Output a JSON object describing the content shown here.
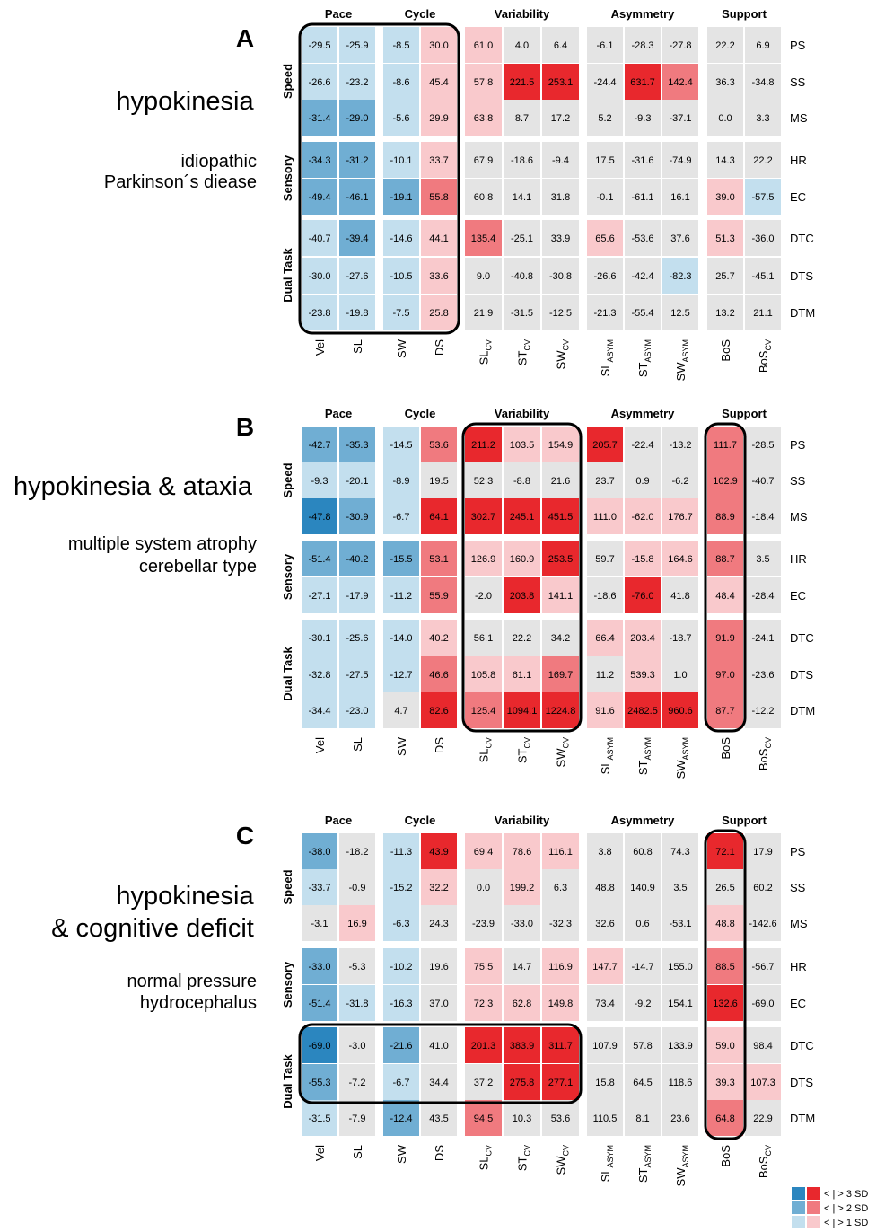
{
  "colors": {
    "pos3": "#e8282d",
    "pos2": "#f07a7f",
    "pos1": "#f9c9cc",
    "neg3": "#2b86bf",
    "neg2": "#70aed3",
    "neg1": "#c3dfee",
    "neutral": "#e4e4e4"
  },
  "chart_data": [
    {
      "type": "heatmap",
      "panel": "A",
      "title": "hypokinesia",
      "subtitle": [
        "idiopathic",
        "Parkinson´s diease"
      ],
      "groups": [
        "Pace",
        "Cycle",
        "Variability",
        "Asymmetry",
        "Support"
      ],
      "row_groups": [
        "Speed",
        "Sensory",
        "Dual Task"
      ],
      "columns": [
        "Vel",
        "SL",
        "SW",
        "DS",
        "SL_CV",
        "ST_CV",
        "SW_CV",
        "SL_ASYM",
        "ST_ASYM",
        "SW_ASYM",
        "BoS",
        "BoS_CV"
      ],
      "rows": [
        "PS",
        "SS",
        "MS",
        "HR",
        "EC",
        "DTC",
        "DTS",
        "DTM"
      ],
      "values": [
        [
          -29.5,
          -25.9,
          -8.5,
          30.0,
          61.0,
          4.0,
          6.4,
          -6.1,
          -28.3,
          -27.8,
          22.2,
          6.9
        ],
        [
          -26.6,
          -23.2,
          -8.6,
          45.4,
          57.8,
          221.5,
          253.1,
          -24.4,
          631.7,
          142.4,
          36.3,
          -34.8
        ],
        [
          -31.4,
          -29.0,
          -5.6,
          29.9,
          63.8,
          8.7,
          17.2,
          5.2,
          -9.3,
          -37.1,
          0.0,
          3.3
        ],
        [
          -34.3,
          -31.2,
          -10.1,
          33.7,
          67.9,
          -18.6,
          -9.4,
          17.5,
          -31.6,
          -74.9,
          14.3,
          22.2
        ],
        [
          -49.4,
          -46.1,
          -19.1,
          55.8,
          60.8,
          14.1,
          31.8,
          -0.1,
          -61.1,
          16.1,
          39.0,
          -57.5
        ],
        [
          -40.7,
          -39.4,
          -14.6,
          44.1,
          135.4,
          -25.1,
          33.9,
          65.6,
          -53.6,
          37.6,
          51.3,
          -36.0
        ],
        [
          -30.0,
          -27.6,
          -10.5,
          33.6,
          9.0,
          -40.8,
          -30.8,
          -26.6,
          -42.4,
          -82.3,
          25.7,
          -45.1
        ],
        [
          -23.8,
          -19.8,
          -7.5,
          25.8,
          21.9,
          -31.5,
          -12.5,
          -21.3,
          -55.4,
          12.5,
          13.2,
          21.1
        ]
      ],
      "sd_level": [
        [
          -1,
          -1,
          -1,
          1,
          1,
          0,
          0,
          0,
          0,
          0,
          0,
          0
        ],
        [
          -1,
          -1,
          -1,
          1,
          1,
          3,
          3,
          0,
          3,
          2,
          0,
          0
        ],
        [
          -2,
          -2,
          -1,
          1,
          1,
          0,
          0,
          0,
          0,
          0,
          0,
          0
        ],
        [
          -2,
          -2,
          -1,
          1,
          0,
          0,
          0,
          0,
          0,
          0,
          0,
          0
        ],
        [
          -2,
          -2,
          -2,
          2,
          0,
          0,
          0,
          0,
          0,
          0,
          1,
          -1
        ],
        [
          -1,
          -2,
          -1,
          1,
          2,
          0,
          0,
          1,
          0,
          0,
          1,
          0
        ],
        [
          -1,
          -1,
          -1,
          1,
          0,
          0,
          0,
          0,
          0,
          -1,
          0,
          0
        ],
        [
          -1,
          -1,
          -1,
          1,
          0,
          0,
          0,
          0,
          0,
          0,
          0,
          0
        ]
      ],
      "highlight_boxes": [
        {
          "col_start": 0,
          "col_end": 3,
          "row_start": 0,
          "row_end": 7
        }
      ]
    },
    {
      "type": "heatmap",
      "panel": "B",
      "title": "hypokinesia & ataxia",
      "subtitle": [
        "multiple system atrophy",
        "cerebellar type"
      ],
      "groups": [
        "Pace",
        "Cycle",
        "Variability",
        "Asymmetry",
        "Support"
      ],
      "row_groups": [
        "Speed",
        "Sensory",
        "Dual Task"
      ],
      "columns": [
        "Vel",
        "SL",
        "SW",
        "DS",
        "SL_CV",
        "ST_CV",
        "SW_CV",
        "SL_ASYM",
        "ST_ASYM",
        "SW_ASYM",
        "BoS",
        "BoS_CV"
      ],
      "rows": [
        "PS",
        "SS",
        "MS",
        "HR",
        "EC",
        "DTC",
        "DTS",
        "DTM"
      ],
      "values": [
        [
          -42.7,
          -35.3,
          -14.5,
          53.6,
          211.2,
          103.5,
          154.9,
          205.7,
          -22.4,
          -13.2,
          111.7,
          -28.5
        ],
        [
          -9.3,
          -20.1,
          -8.9,
          19.5,
          52.3,
          -8.8,
          21.6,
          23.7,
          0.9,
          -6.2,
          102.9,
          -40.7
        ],
        [
          -47.8,
          -30.9,
          -6.7,
          64.1,
          302.7,
          245.1,
          451.5,
          111.0,
          -62.0,
          176.7,
          88.9,
          -18.4
        ],
        [
          -51.4,
          -40.2,
          -15.5,
          53.1,
          126.9,
          160.9,
          253.5,
          59.7,
          -15.8,
          164.6,
          88.7,
          3.5
        ],
        [
          -27.1,
          -17.9,
          -11.2,
          55.9,
          -2.0,
          203.8,
          141.1,
          -18.6,
          -76.0,
          41.8,
          48.4,
          -28.4
        ],
        [
          -30.1,
          -25.6,
          -14.0,
          40.2,
          56.1,
          22.2,
          34.2,
          66.4,
          203.4,
          -18.7,
          91.9,
          -24.1
        ],
        [
          -32.8,
          -27.5,
          -12.7,
          46.6,
          105.8,
          61.1,
          169.7,
          11.2,
          539.3,
          1.0,
          97.0,
          -23.6
        ],
        [
          -34.4,
          -23.0,
          4.7,
          82.6,
          125.4,
          1094.1,
          1224.8,
          91.6,
          2482.5,
          960.6,
          87.7,
          -12.2
        ]
      ],
      "sd_level": [
        [
          -2,
          -2,
          -1,
          2,
          3,
          1,
          1,
          3,
          0,
          0,
          2,
          0
        ],
        [
          -1,
          -1,
          -1,
          0,
          0,
          0,
          0,
          0,
          0,
          0,
          2,
          0
        ],
        [
          -3,
          -2,
          -1,
          3,
          3,
          3,
          3,
          1,
          1,
          1,
          2,
          0
        ],
        [
          -2,
          -2,
          -2,
          2,
          1,
          1,
          3,
          0,
          1,
          1,
          2,
          0
        ],
        [
          -1,
          -1,
          -1,
          2,
          0,
          3,
          1,
          0,
          3,
          0,
          1,
          0
        ],
        [
          -1,
          -1,
          -1,
          1,
          0,
          0,
          0,
          1,
          1,
          0,
          2,
          0
        ],
        [
          -1,
          -1,
          -1,
          2,
          1,
          1,
          2,
          0,
          1,
          0,
          2,
          0
        ],
        [
          -1,
          -1,
          0,
          3,
          2,
          3,
          3,
          1,
          3,
          3,
          2,
          0
        ]
      ],
      "highlight_boxes": [
        {
          "col_start": 4,
          "col_end": 6,
          "row_start": 0,
          "row_end": 7
        },
        {
          "col_start": 10,
          "col_end": 10,
          "row_start": 0,
          "row_end": 7
        }
      ]
    },
    {
      "type": "heatmap",
      "panel": "C",
      "title": "hypokinesia",
      "title_line2": "& cognitive deficit",
      "subtitle": [
        "normal pressure",
        "hydrocephalus"
      ],
      "groups": [
        "Pace",
        "Cycle",
        "Variability",
        "Asymmetry",
        "Support"
      ],
      "row_groups": [
        "Speed",
        "Sensory",
        "Dual Task"
      ],
      "columns": [
        "Vel",
        "SL",
        "SW",
        "DS",
        "SL_CV",
        "ST_CV",
        "SW_CV",
        "SL_ASYM",
        "ST_ASYM",
        "SW_ASYM",
        "BoS",
        "BoS_CV"
      ],
      "rows": [
        "PS",
        "SS",
        "MS",
        "HR",
        "EC",
        "DTC",
        "DTS",
        "DTM"
      ],
      "values": [
        [
          -38.0,
          -18.2,
          -11.3,
          43.9,
          69.4,
          78.6,
          116.1,
          3.8,
          60.8,
          74.3,
          72.1,
          17.9
        ],
        [
          -33.7,
          -0.9,
          -15.2,
          32.2,
          0.0,
          199.2,
          6.3,
          48.8,
          140.9,
          3.5,
          26.5,
          60.2
        ],
        [
          -3.1,
          16.9,
          -6.3,
          24.3,
          -23.9,
          -33.0,
          -32.3,
          32.6,
          0.6,
          -53.1,
          48.8,
          -142.6
        ],
        [
          -33.0,
          -5.3,
          -10.2,
          19.6,
          75.5,
          14.7,
          116.9,
          147.7,
          -14.7,
          155.0,
          88.5,
          -56.7
        ],
        [
          -51.4,
          -31.8,
          -16.3,
          37.0,
          72.3,
          62.8,
          149.8,
          73.4,
          -9.2,
          154.1,
          132.6,
          -69.0
        ],
        [
          -69.0,
          -3.0,
          -21.6,
          41.0,
          201.3,
          383.9,
          311.7,
          107.9,
          57.8,
          133.9,
          59.0,
          98.4
        ],
        [
          -55.3,
          -7.2,
          -6.7,
          34.4,
          37.2,
          275.8,
          277.1,
          15.8,
          64.5,
          118.6,
          39.3,
          107.3
        ],
        [
          -31.5,
          -7.9,
          -12.4,
          43.5,
          94.5,
          10.3,
          53.6,
          110.5,
          8.1,
          23.6,
          64.8,
          22.9
        ]
      ],
      "sd_level": [
        [
          -2,
          0,
          -1,
          3,
          1,
          1,
          1,
          0,
          0,
          0,
          3,
          0
        ],
        [
          -1,
          0,
          -1,
          1,
          0,
          1,
          0,
          0,
          0,
          0,
          0,
          0
        ],
        [
          0,
          1,
          -1,
          0,
          0,
          0,
          0,
          0,
          0,
          0,
          1,
          0
        ],
        [
          -2,
          0,
          -1,
          0,
          1,
          0,
          1,
          1,
          0,
          0,
          2,
          0
        ],
        [
          -2,
          -1,
          -1,
          0,
          1,
          1,
          1,
          0,
          0,
          0,
          3,
          0
        ],
        [
          -3,
          0,
          -2,
          0,
          3,
          3,
          3,
          0,
          0,
          0,
          1,
          0
        ],
        [
          -2,
          0,
          -1,
          0,
          0,
          3,
          3,
          0,
          0,
          0,
          1,
          1
        ],
        [
          -1,
          0,
          -2,
          0,
          2,
          0,
          0,
          0,
          0,
          0,
          2,
          0
        ]
      ],
      "highlight_boxes": [
        {
          "col_start": 0,
          "col_end": 6,
          "row_start": 5,
          "row_end": 6
        },
        {
          "col_start": 10,
          "col_end": 10,
          "row_start": 0,
          "row_end": 7
        }
      ]
    }
  ],
  "legend": {
    "entries": [
      "< | > 3 SD",
      "< | > 2 SD",
      "< | > 1 SD"
    ]
  }
}
